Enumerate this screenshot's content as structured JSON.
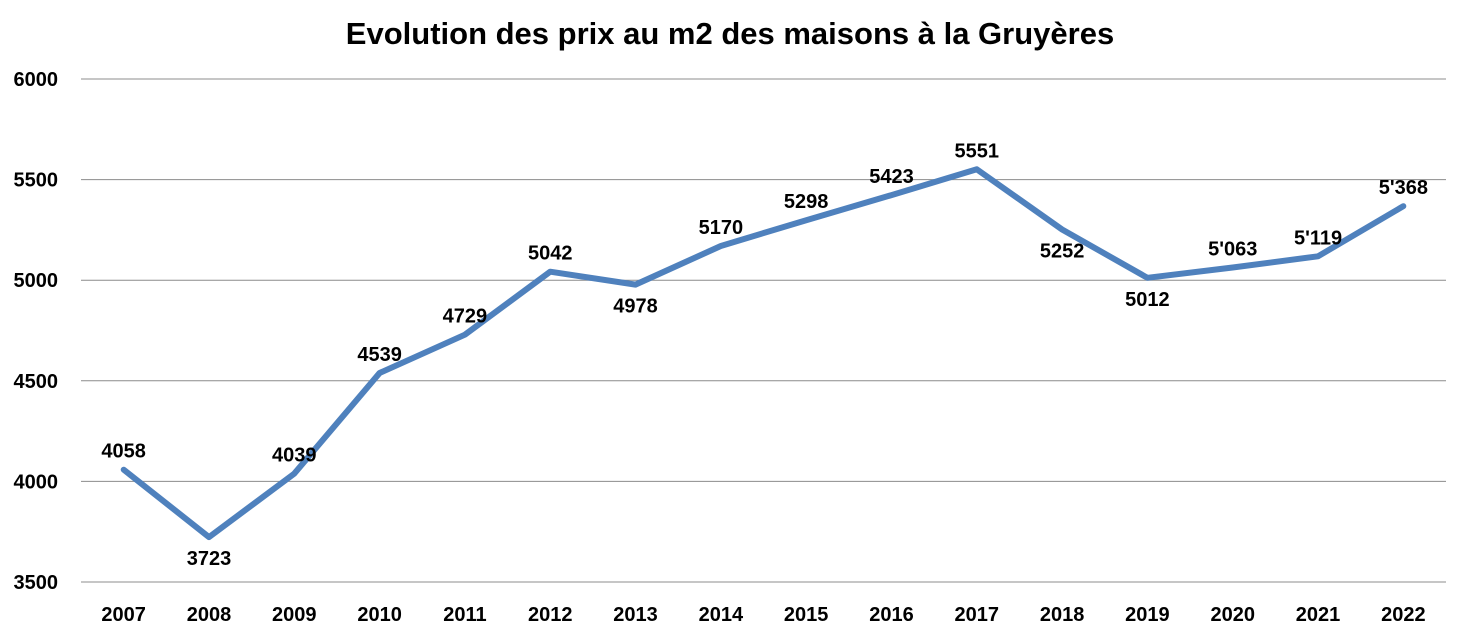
{
  "chart_data": {
    "type": "line",
    "title": "Evolution des prix au m2 des maisons à la Gruyères",
    "xlabel": "",
    "ylabel": "",
    "ylim": [
      3500,
      6000
    ],
    "yticks": [
      "3500",
      "4000",
      "4500",
      "5000",
      "5500",
      "6000"
    ],
    "grid": true,
    "legend": "none",
    "categories": [
      "2007",
      "2008",
      "2009",
      "2010",
      "2011",
      "2012",
      "2013",
      "2014",
      "2015",
      "2016",
      "2017",
      "2018",
      "2019",
      "2020",
      "2021",
      "2022"
    ],
    "series": [
      {
        "values": [
          4058,
          3723,
          4039,
          4539,
          4729,
          5042,
          4978,
          5170,
          5298,
          5423,
          5551,
          5252,
          5012,
          5063,
          5119,
          5368
        ],
        "labels": [
          "4058",
          "3723",
          "4039",
          "4539",
          "4729",
          "5042",
          "4978",
          "5170",
          "5298",
          "5423",
          "5551",
          "5252",
          "5012",
          "5'063",
          "5'119",
          "5'368"
        ],
        "label_position": [
          "above",
          "below",
          "above",
          "above",
          "above",
          "above",
          "below",
          "above",
          "above",
          "above",
          "above",
          "below",
          "below",
          "above",
          "above",
          "above"
        ],
        "color": "#4f81bd"
      }
    ]
  }
}
